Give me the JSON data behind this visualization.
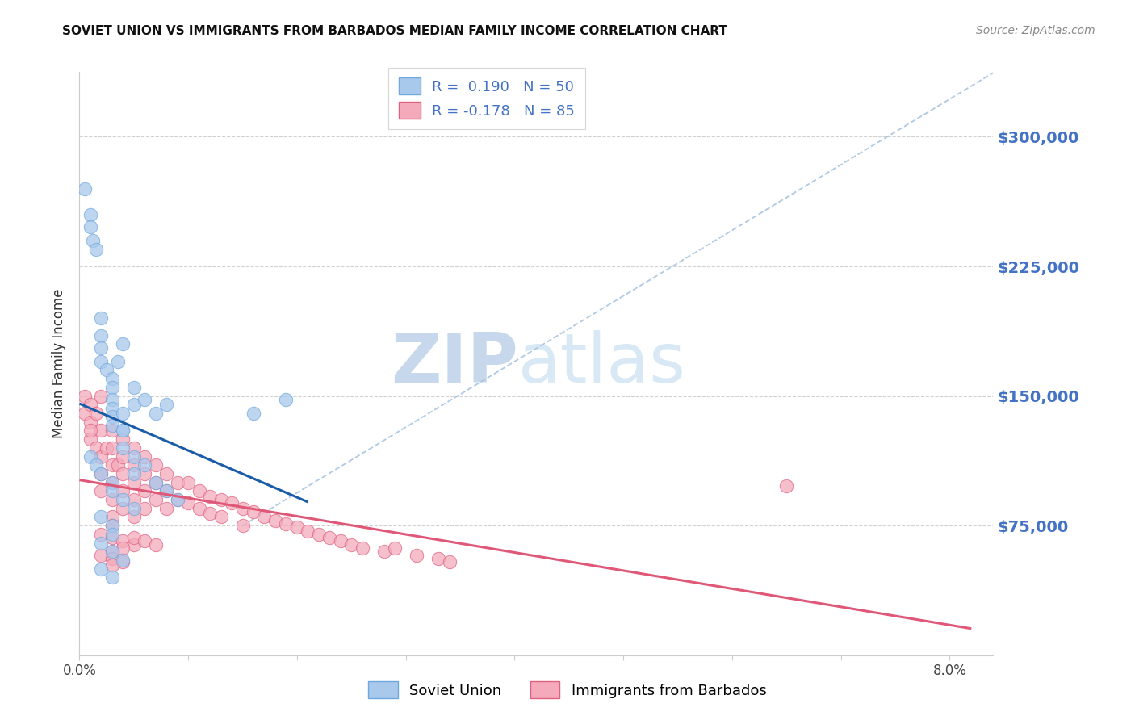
{
  "title": "SOVIET UNION VS IMMIGRANTS FROM BARBADOS MEDIAN FAMILY INCOME CORRELATION CHART",
  "source": "Source: ZipAtlas.com",
  "ylabel": "Median Family Income",
  "xlim": [
    0.0,
    0.084
  ],
  "ylim": [
    0,
    337500
  ],
  "yticks": [
    75000,
    150000,
    225000,
    300000
  ],
  "ytick_labels": [
    "$75,000",
    "$150,000",
    "$225,000",
    "$300,000"
  ],
  "xticks": [
    0.0,
    0.01,
    0.02,
    0.03,
    0.04,
    0.05,
    0.06,
    0.07,
    0.08
  ],
  "xtick_labels": [
    "0.0%",
    "",
    "",
    "",
    "",
    "",
    "",
    "",
    "8.0%"
  ],
  "series1_facecolor": "#A8C8EC",
  "series1_edgecolor": "#6FA8DC",
  "series2_facecolor": "#F4AABB",
  "series2_edgecolor": "#E06080",
  "line1_color": "#1A5CA8",
  "line2_color": "#E05878",
  "diagonal_color": "#A8C4E0",
  "watermark_zip_color": "#C8D8EC",
  "watermark_atlas_color": "#D8E8F4",
  "background_color": "#FFFFFF",
  "ytick_color": "#4472C4",
  "title_color": "#111111",
  "source_color": "#888888",
  "grid_color": "#CCCCCC",
  "legend_r_color": "#4472C4",
  "legend_n_color": "#4472C4",
  "soviet_x": [
    0.0005,
    0.001,
    0.001,
    0.0012,
    0.0015,
    0.002,
    0.002,
    0.002,
    0.002,
    0.0025,
    0.003,
    0.003,
    0.003,
    0.003,
    0.003,
    0.003,
    0.0035,
    0.004,
    0.004,
    0.004,
    0.004,
    0.005,
    0.005,
    0.005,
    0.005,
    0.006,
    0.006,
    0.007,
    0.007,
    0.008,
    0.008,
    0.009,
    0.001,
    0.0015,
    0.002,
    0.003,
    0.003,
    0.004,
    0.004,
    0.005,
    0.002,
    0.003,
    0.003,
    0.002,
    0.003,
    0.004,
    0.002,
    0.003,
    0.016,
    0.019
  ],
  "soviet_y": [
    270000,
    255000,
    248000,
    240000,
    235000,
    195000,
    185000,
    178000,
    170000,
    165000,
    160000,
    155000,
    148000,
    143000,
    138000,
    133000,
    170000,
    180000,
    140000,
    130000,
    120000,
    155000,
    145000,
    115000,
    105000,
    148000,
    110000,
    140000,
    100000,
    145000,
    95000,
    90000,
    115000,
    110000,
    105000,
    100000,
    95000,
    130000,
    90000,
    85000,
    80000,
    75000,
    70000,
    65000,
    60000,
    55000,
    50000,
    45000,
    140000,
    148000
  ],
  "barbados_x": [
    0.0005,
    0.0005,
    0.001,
    0.001,
    0.001,
    0.0015,
    0.0015,
    0.002,
    0.002,
    0.002,
    0.002,
    0.002,
    0.0025,
    0.003,
    0.003,
    0.003,
    0.003,
    0.003,
    0.003,
    0.003,
    0.0035,
    0.004,
    0.004,
    0.004,
    0.004,
    0.004,
    0.005,
    0.005,
    0.005,
    0.005,
    0.005,
    0.006,
    0.006,
    0.006,
    0.006,
    0.007,
    0.007,
    0.007,
    0.008,
    0.008,
    0.008,
    0.009,
    0.009,
    0.01,
    0.01,
    0.011,
    0.011,
    0.012,
    0.012,
    0.013,
    0.013,
    0.014,
    0.015,
    0.015,
    0.016,
    0.017,
    0.018,
    0.019,
    0.02,
    0.021,
    0.022,
    0.023,
    0.024,
    0.025,
    0.026,
    0.028,
    0.029,
    0.031,
    0.033,
    0.034,
    0.002,
    0.003,
    0.004,
    0.005,
    0.004,
    0.003,
    0.002,
    0.003,
    0.004,
    0.003,
    0.005,
    0.006,
    0.007,
    0.065,
    0.001
  ],
  "barbados_y": [
    150000,
    140000,
    145000,
    135000,
    125000,
    140000,
    120000,
    150000,
    130000,
    115000,
    105000,
    95000,
    120000,
    130000,
    120000,
    110000,
    100000,
    90000,
    80000,
    75000,
    110000,
    125000,
    115000,
    105000,
    95000,
    85000,
    120000,
    110000,
    100000,
    90000,
    80000,
    115000,
    105000,
    95000,
    85000,
    110000,
    100000,
    90000,
    105000,
    95000,
    85000,
    100000,
    90000,
    100000,
    88000,
    95000,
    85000,
    92000,
    82000,
    90000,
    80000,
    88000,
    85000,
    75000,
    83000,
    80000,
    78000,
    76000,
    74000,
    72000,
    70000,
    68000,
    66000,
    64000,
    62000,
    60000,
    62000,
    58000,
    56000,
    54000,
    70000,
    68000,
    66000,
    64000,
    62000,
    60000,
    58000,
    56000,
    54000,
    52000,
    68000,
    66000,
    64000,
    98000,
    130000
  ]
}
